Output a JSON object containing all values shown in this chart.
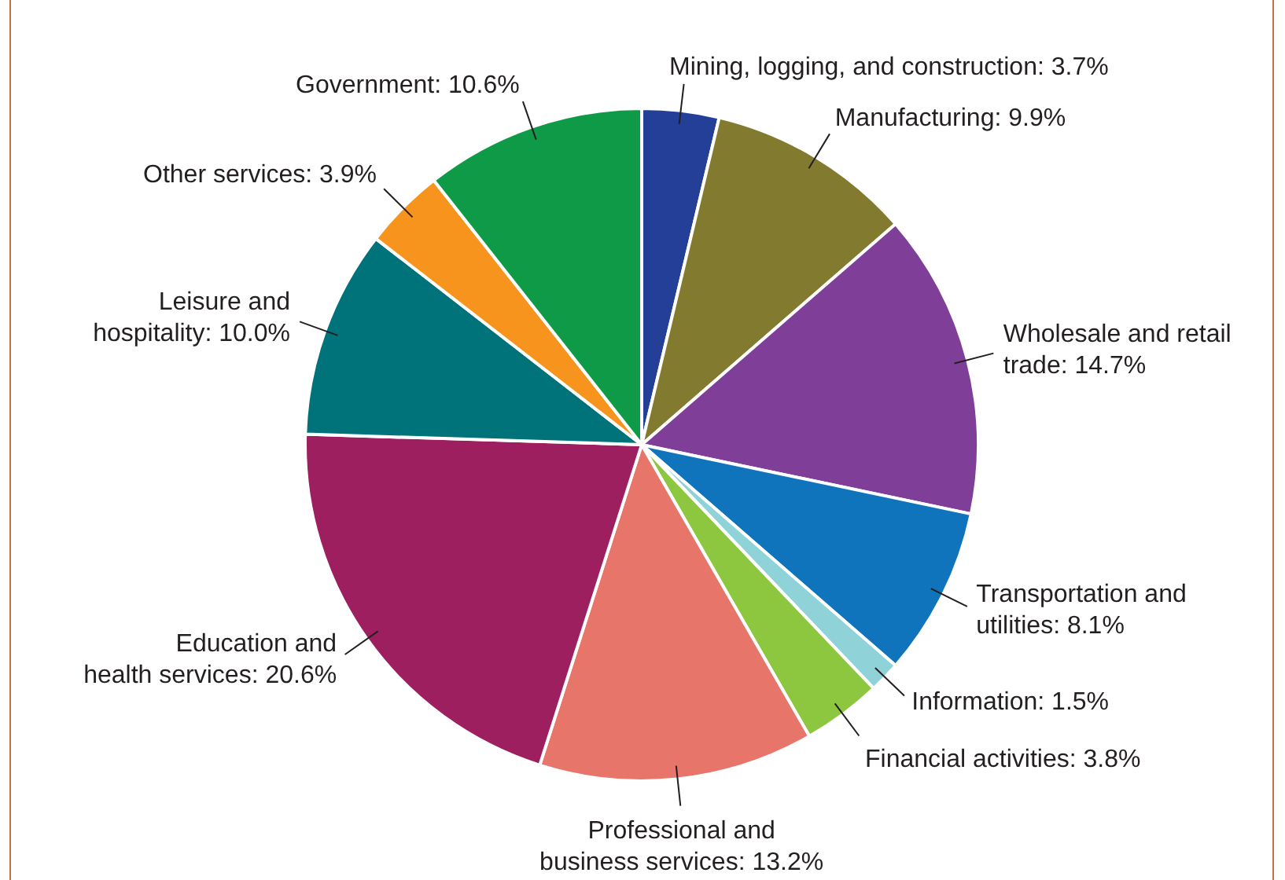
{
  "chart_data": {
    "type": "pie",
    "categories": [
      "Mining, logging, and construction",
      "Manufacturing",
      "Wholesale and retail trade",
      "Transportation and utilities",
      "Information",
      "Financial activities",
      "Professional and business services",
      "Education and health services",
      "Leisure and hospitality",
      "Other services",
      "Government"
    ],
    "values": [
      3.7,
      9.9,
      14.7,
      8.1,
      1.5,
      3.8,
      13.2,
      20.6,
      10.0,
      3.9,
      10.6
    ],
    "value_labels": [
      "3.7%",
      "9.9%",
      "14.7%",
      "8.1%",
      "1.5%",
      "3.8%",
      "13.2%",
      "20.6%",
      "10.0%",
      "3.9%",
      "10.6%"
    ],
    "colors": [
      "#243f98",
      "#827a2f",
      "#7f3f98",
      "#1074bc",
      "#8fd3d9",
      "#8dc63f",
      "#e8756a",
      "#9e1f5f",
      "#00737a",
      "#f7941d",
      "#0f9a48"
    ],
    "legend": false
  }
}
